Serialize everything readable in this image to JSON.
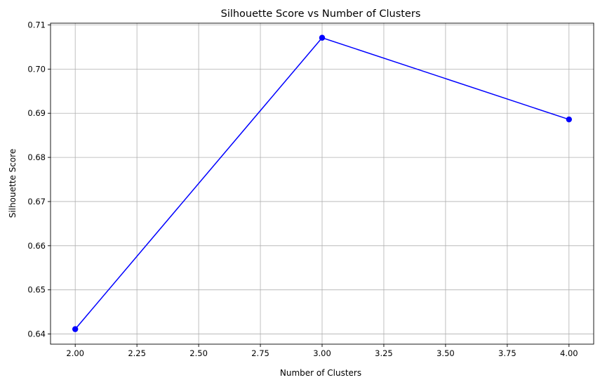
{
  "chart_data": {
    "type": "line",
    "title": "Silhouette Score vs Number of Clusters",
    "xlabel": "Number of Clusters",
    "ylabel": "Silhouette Score",
    "xlim": [
      1.9,
      4.1
    ],
    "ylim": [
      0.6377,
      0.7104
    ],
    "xticks": [
      2.0,
      2.25,
      2.5,
      2.75,
      3.0,
      3.25,
      3.5,
      3.75,
      4.0
    ],
    "xtick_labels": [
      "2.00",
      "2.25",
      "2.50",
      "2.75",
      "3.00",
      "3.25",
      "3.50",
      "3.75",
      "4.00"
    ],
    "yticks": [
      0.64,
      0.65,
      0.66,
      0.67,
      0.68,
      0.69,
      0.7,
      0.71
    ],
    "ytick_labels": [
      "0.64",
      "0.65",
      "0.66",
      "0.67",
      "0.68",
      "0.69",
      "0.70",
      "0.71"
    ],
    "grid": true,
    "series": [
      {
        "x": [
          2,
          3,
          4
        ],
        "values": [
          0.6411,
          0.7071,
          0.6886
        ],
        "color": "#0000ff",
        "marker": "circle"
      }
    ]
  }
}
